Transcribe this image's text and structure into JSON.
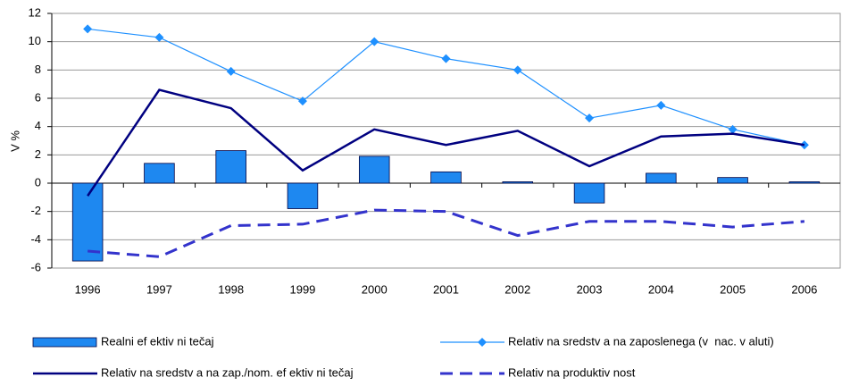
{
  "chart_data": {
    "type": "combo",
    "y_label": "V %",
    "categories": [
      "1996",
      "1997",
      "1998",
      "1999",
      "2000",
      "2001",
      "2002",
      "2003",
      "2004",
      "2005",
      "2006"
    ],
    "series": [
      {
        "name": "Realni ef ektiv ni tečaj",
        "type": "bar",
        "color": "#1e88f0",
        "values": [
          -5.5,
          1.4,
          2.3,
          -1.8,
          1.9,
          0.8,
          0.1,
          -1.4,
          0.7,
          0.4,
          0.1
        ]
      },
      {
        "name": "Relativ na sredstv a na zaposlenega (v  nac. v aluti)",
        "type": "line",
        "color": "#1e90ff",
        "marker": "diamond",
        "values": [
          10.9,
          10.3,
          7.9,
          5.8,
          10.0,
          8.8,
          8.0,
          4.6,
          5.5,
          3.8,
          2.7
        ]
      },
      {
        "name": "Relativ na sredstv a na zap./nom. ef ektiv ni tečaj",
        "type": "line",
        "color": "#000080",
        "values": [
          -0.9,
          6.6,
          5.3,
          0.9,
          3.8,
          2.7,
          3.7,
          1.2,
          3.3,
          3.5,
          2.7
        ]
      },
      {
        "name": "Relativ na produktiv nost",
        "type": "line",
        "color": "#3333cc",
        "dash": true,
        "values": [
          -4.8,
          -5.2,
          -3.0,
          -2.9,
          -1.9,
          -2.0,
          -3.7,
          -2.7,
          -2.7,
          -3.1,
          -2.7
        ]
      }
    ],
    "ylim": [
      -6,
      12
    ],
    "yticks": [
      -6,
      -4,
      -2,
      0,
      2,
      4,
      6,
      8,
      10,
      12
    ],
    "grid": true
  }
}
